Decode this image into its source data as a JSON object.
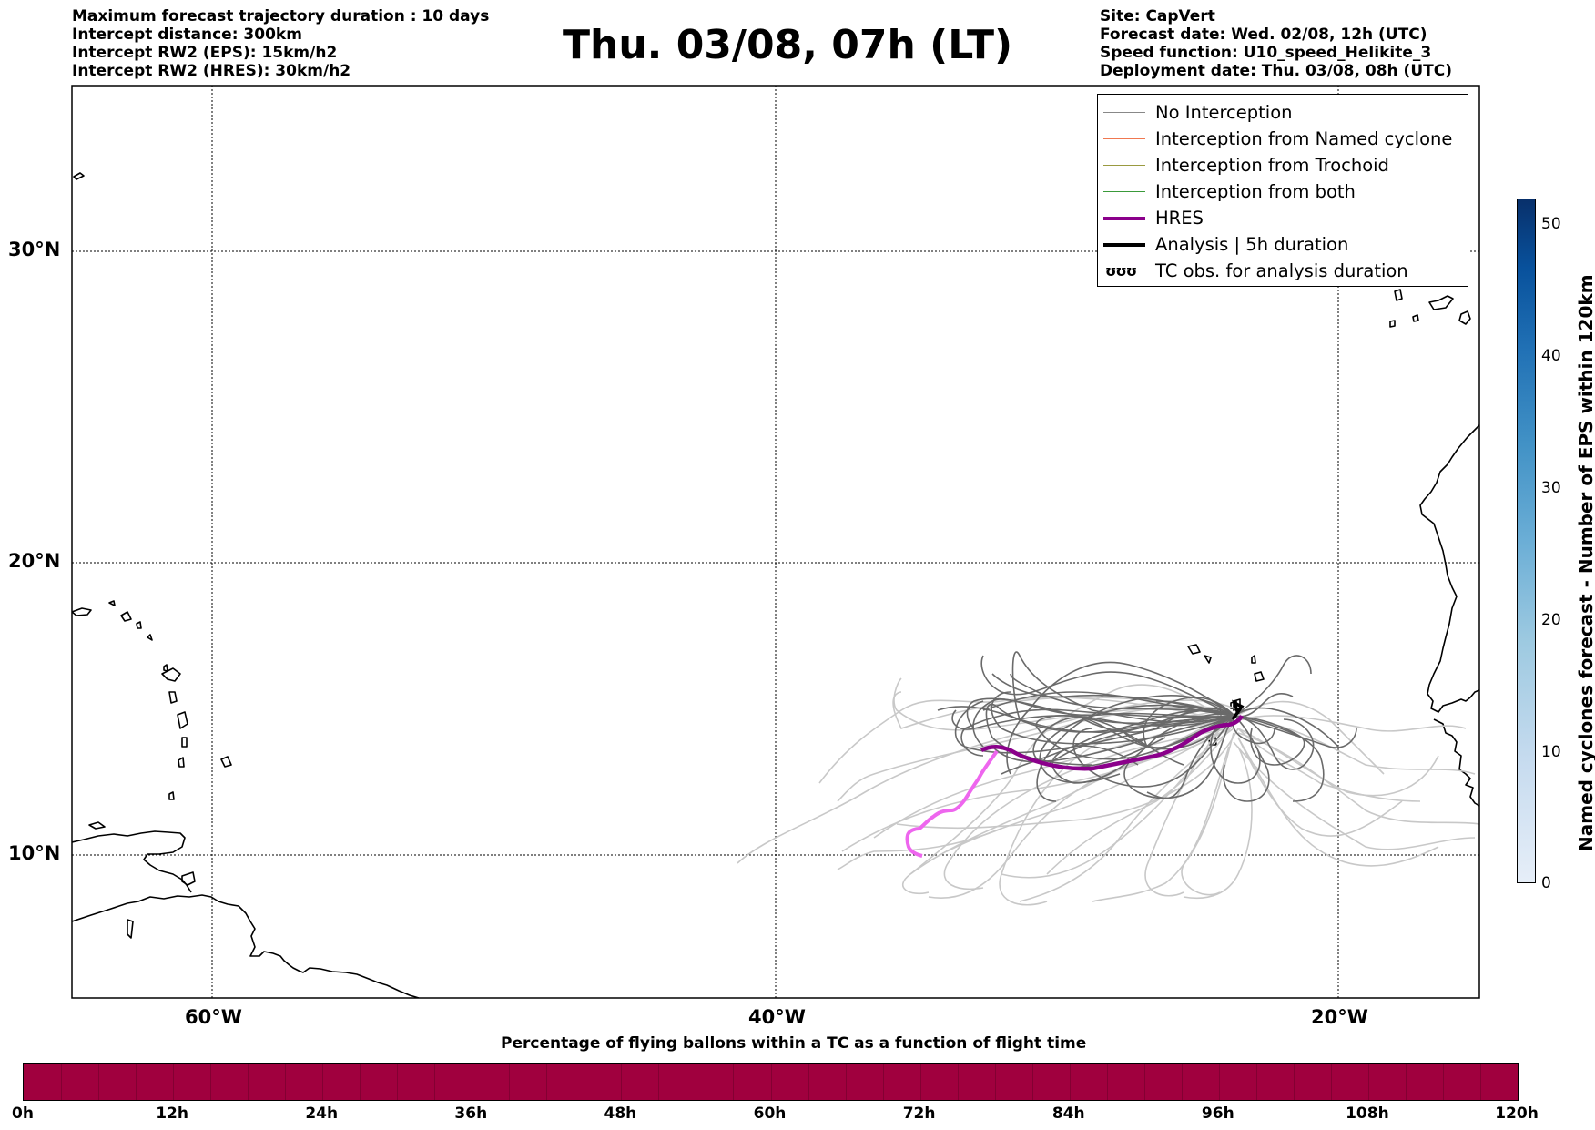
{
  "header": {
    "left": [
      "Maximum forecast trajectory duration : 10 days",
      "Intercept distance: 300km",
      "Intercept RW2 (EPS):  15km/h2",
      "Intercept RW2 (HRES): 30km/h2"
    ],
    "title": "Thu. 03/08, 07h (LT)",
    "right": [
      "Site: CapVert",
      "Forecast date: Wed. 02/08, 12h (UTC)",
      "Speed function: U10_speed_Helikite_3",
      "Deployment date: Thu. 03/08, 08h (UTC)"
    ]
  },
  "map": {
    "lat_labels": [
      "30°N",
      "20°N",
      "10°N"
    ],
    "lon_labels": [
      "60°W",
      "40°W",
      "20°W"
    ],
    "colors": {
      "no_interception": "#808080",
      "eps_light": "#c8c8c8",
      "eps_dark": "#6a6a6a",
      "hres": "#8b008b",
      "hres_pink": "#ee66ee",
      "coast": "#000000"
    }
  },
  "legend": {
    "items": [
      {
        "label": "No Interception",
        "color": "#888888",
        "width": 1.5
      },
      {
        "label": "Interception from Named cyclone",
        "color": "#f07850",
        "width": 1.5
      },
      {
        "label": "Interception from Trochoid",
        "color": "#9a9a40",
        "width": 1.5
      },
      {
        "label": "Interception from both",
        "color": "#3a9a3a",
        "width": 1.5
      },
      {
        "label": "HRES",
        "color": "#8b008b",
        "width": 4
      },
      {
        "label": "Analysis | 5h duration",
        "color": "#000000",
        "width": 4
      },
      {
        "label": "TC obs. for analysis duration",
        "color": "#000000",
        "width": 0,
        "glyph": "ʊʊʊ"
      }
    ]
  },
  "colorbar_vertical": {
    "label": "Named cyclones forecast - Number of EPS within 120km",
    "ticks": [
      "50",
      "40",
      "30",
      "20",
      "10",
      "0"
    ]
  },
  "colorbar_horizontal": {
    "label": "Percentage of flying ballons within a TC as a function of flight time",
    "ticks": [
      "0h",
      "12h",
      "24h",
      "36h",
      "48h",
      "60h",
      "72h",
      "84h",
      "96h",
      "108h",
      "120h"
    ],
    "color": "#a0003e"
  }
}
